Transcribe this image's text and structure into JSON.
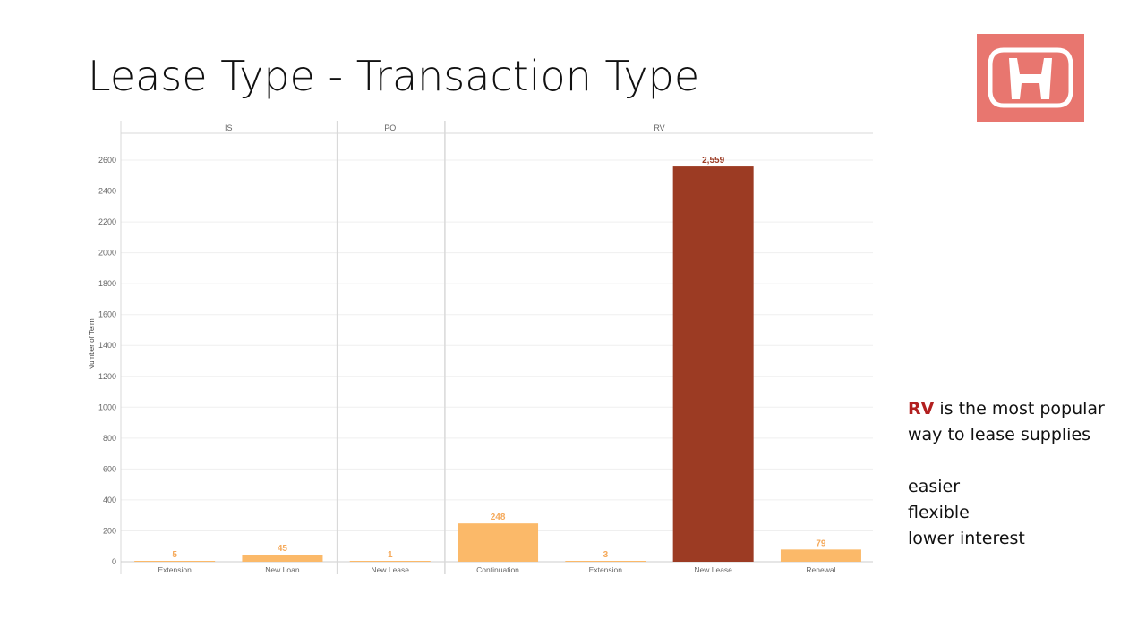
{
  "slide": {
    "title": "Lease Type - Transaction Type"
  },
  "logo": {
    "icon": "honda-logo-icon",
    "background": "#E8766F",
    "foreground": "#FFFFFF"
  },
  "callout": {
    "highlight": "RV",
    "line1_rest": " is the most popular",
    "line2": "way to lease supplies",
    "benefits": [
      "easier",
      "flexible",
      "lower interest"
    ],
    "highlight_color": "#B21F1F"
  },
  "chart_data": {
    "type": "bar",
    "ylabel": "Number of Term",
    "xlabel": "",
    "ylim": [
      0,
      2700
    ],
    "yticks": [
      0,
      200,
      400,
      600,
      800,
      1000,
      1200,
      1400,
      1600,
      1800,
      2000,
      2200,
      2400,
      2600
    ],
    "grid": true,
    "panels": [
      {
        "name": "IS",
        "categories": [
          "Extension",
          "New Loan"
        ],
        "values": [
          5,
          45
        ],
        "labels": [
          "5",
          "45"
        ]
      },
      {
        "name": "PO",
        "categories": [
          "New Lease"
        ],
        "values": [
          1
        ],
        "labels": [
          "1"
        ]
      },
      {
        "name": "RV",
        "categories": [
          "Continuation",
          "Extension",
          "New Lease",
          "Renewal"
        ],
        "values": [
          248,
          3,
          2559,
          79
        ],
        "labels": [
          "248",
          "3",
          "2,559",
          "79"
        ]
      }
    ],
    "colors": {
      "bar_low": "#FBB969",
      "bar_high": "#9C3B23",
      "label_low": "#F5A95A",
      "label_high": "#9C3B23",
      "axis_text": "#666666",
      "grid": "#EFEFEF",
      "divider": "#D9D9D9"
    }
  }
}
